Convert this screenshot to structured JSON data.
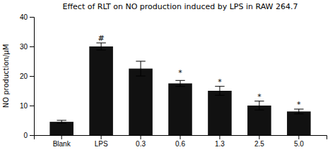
{
  "chart_data": {
    "type": "bar",
    "title": "Effect of RLT on NO production induced by LPS in RAW 264.7",
    "ylabel": "NO production/μM",
    "categories": [
      "Blank",
      "LPS",
      "0.3",
      "0.6",
      "1.3",
      "2.5",
      "5.0"
    ],
    "values": [
      4.5,
      30.0,
      22.5,
      17.5,
      15.0,
      10.0,
      8.0
    ],
    "errors": [
      0.5,
      1.2,
      2.5,
      1.0,
      1.5,
      1.5,
      0.8
    ],
    "color": "#111111",
    "ylim": [
      0,
      40
    ],
    "yticks": [
      0,
      10,
      20,
      30,
      40
    ],
    "annotations": [
      {
        "text": "#",
        "x": "LPS",
        "y": 31.8
      },
      {
        "text": "*",
        "x": "0.6",
        "y": 20.2
      },
      {
        "text": "*",
        "x": "1.3",
        "y": 17.2
      },
      {
        "text": "*",
        "x": "2.5",
        "y": 12.2
      },
      {
        "text": "*",
        "x": "5.0",
        "y": 9.5
      }
    ]
  }
}
